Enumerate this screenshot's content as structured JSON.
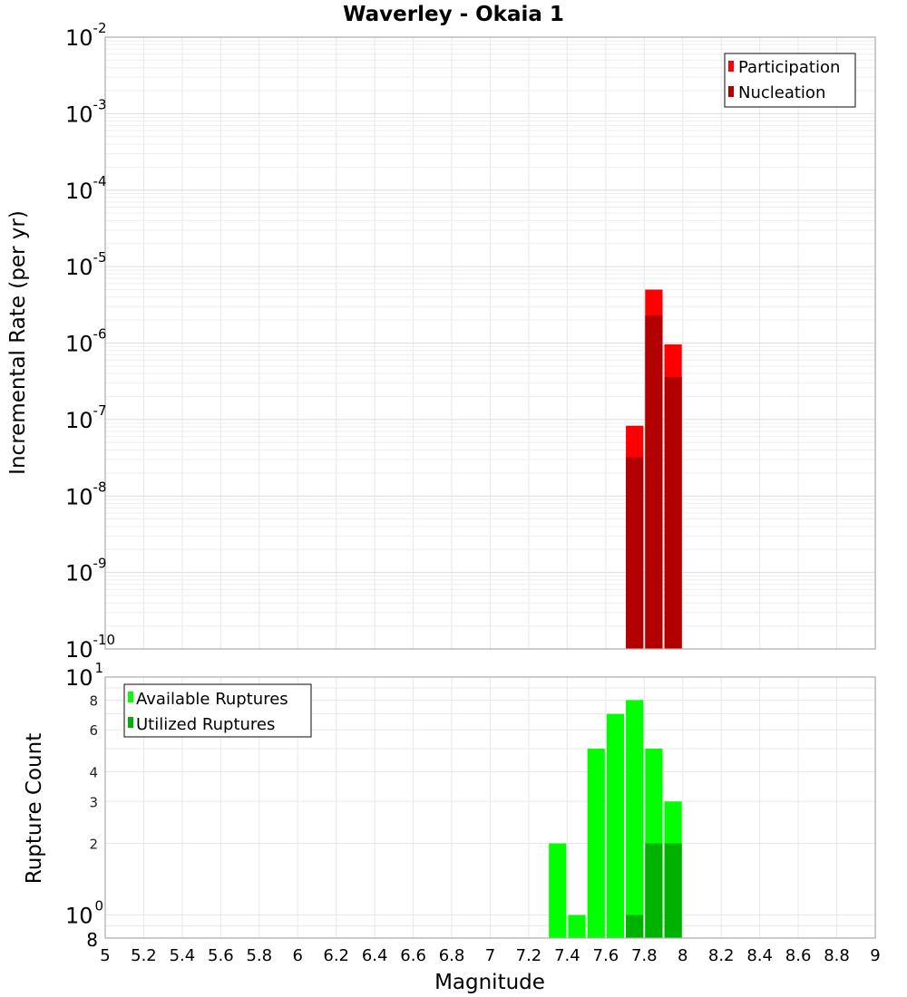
{
  "chart_data": [
    {
      "type": "bar",
      "title": "Waverley - Okaia 1",
      "xlabel": "Magnitude",
      "ylabel": "Incremental Rate (per yr)",
      "yscale": "log",
      "ylim": [
        1e-10,
        0.01
      ],
      "xlim": [
        5,
        9
      ],
      "x_bin_width": 0.1,
      "y_tick_exponents": [
        -2,
        -3,
        -4,
        -5,
        -6,
        -7,
        -8,
        -9,
        -10
      ],
      "grid": true,
      "legend_position": "top-right",
      "bins": [
        7.7,
        7.8,
        7.9
      ],
      "series": [
        {
          "name": "Participation",
          "color": "#ff0000",
          "values": [
            8.3e-08,
            5e-06,
            9.6e-07
          ]
        },
        {
          "name": "Nucleation",
          "color": "#b20000",
          "values": [
            3.2e-08,
            2.3e-06,
            3.6e-07
          ]
        }
      ]
    },
    {
      "type": "bar",
      "title": "",
      "xlabel": "Magnitude",
      "ylabel": "Rupture Count",
      "yscale": "log",
      "ylim": [
        0.8,
        10
      ],
      "xlim": [
        5,
        9
      ],
      "x_bin_width": 0.1,
      "x_ticks": [
        "5",
        "5.2",
        "5.4",
        "5.6",
        "5.8",
        "6",
        "6.2",
        "6.4",
        "6.6",
        "6.8",
        "7",
        "7.2",
        "7.4",
        "7.6",
        "7.8",
        "8",
        "8.2",
        "8.4",
        "8.6",
        "8.8",
        "9"
      ],
      "y_major_ticks": [
        {
          "base": "10",
          "exp": "1",
          "value": 10
        },
        {
          "base": "10",
          "exp": "0",
          "value": 1
        }
      ],
      "y_minor_ticks": [
        {
          "label": "8",
          "value": 8
        },
        {
          "label": "6",
          "value": 6
        },
        {
          "label": "4",
          "value": 4
        },
        {
          "label": "3",
          "value": 3
        },
        {
          "label": "2",
          "value": 2
        },
        {
          "label": "8",
          "value": 0.8
        }
      ],
      "grid": true,
      "legend_position": "top-left",
      "bins": [
        7.3,
        7.4,
        7.5,
        7.6,
        7.7,
        7.8,
        7.9
      ],
      "series": [
        {
          "name": "Available Ruptures",
          "color": "#00ff00",
          "values": [
            2,
            1,
            5,
            7,
            8,
            5,
            3
          ]
        },
        {
          "name": "Utilized Ruptures",
          "color": "#00b200",
          "values": [
            0,
            0,
            0,
            0,
            1,
            2,
            2
          ]
        }
      ]
    }
  ],
  "labels": {
    "title": "Waverley - Okaia 1",
    "top_ylabel": "Incremental Rate (per yr)",
    "bottom_ylabel": "Rupture Count",
    "xlabel": "Magnitude",
    "legend_top": [
      "Participation",
      "Nucleation"
    ],
    "legend_bottom": [
      "Available Ruptures",
      "Utilized Ruptures"
    ]
  }
}
